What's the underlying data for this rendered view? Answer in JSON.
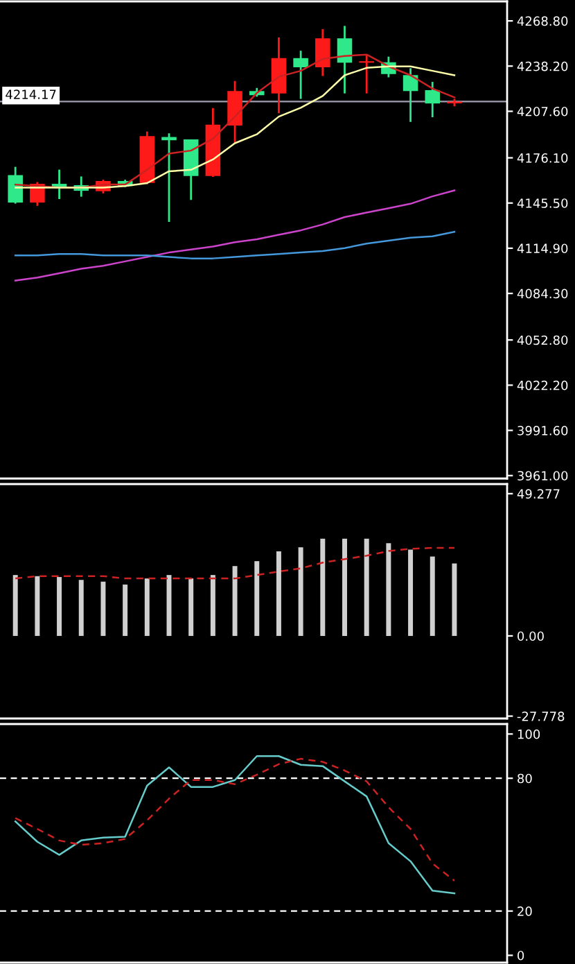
{
  "chart_data": [
    {
      "type": "candlestick",
      "categories": [
        null,
        null,
        null,
        null,
        null,
        null,
        null,
        null,
        null,
        null,
        null,
        null,
        null,
        null,
        null,
        null,
        null,
        null,
        null,
        null,
        null
      ],
      "ohlc": [
        [
          4164.4,
          4170.0,
          4145.1,
          4145.8
        ],
        [
          4145.8,
          4159.7,
          4143.6,
          4158.5
        ],
        [
          4158.5,
          4168.1,
          4148.2,
          4156.0
        ],
        [
          4157.6,
          4163.5,
          4149.8,
          4153.8
        ],
        [
          4153.5,
          4161.3,
          4152.0,
          4160.4
        ],
        [
          4160.4,
          4161.3,
          4156.3,
          4157.0
        ],
        [
          4159.1,
          4193.9,
          4158.2,
          4190.8
        ],
        [
          4190.2,
          4192.7,
          4132.7,
          4188.0
        ],
        [
          4188.6,
          4188.6,
          4147.6,
          4163.8
        ],
        [
          4163.8,
          4209.8,
          4163.2,
          4198.6
        ],
        [
          4198.0,
          4228.1,
          4186.2,
          4221.3
        ],
        [
          4221.3,
          4223.4,
          4217.5,
          4218.5
        ],
        [
          4219.7,
          4257.6,
          4206.3,
          4243.6
        ],
        [
          4243.6,
          4248.6,
          4216.0,
          4237.4
        ],
        [
          4237.4,
          4263.2,
          4231.5,
          4257.0
        ],
        [
          4257.0,
          4265.4,
          4219.7,
          4240.5
        ],
        [
          4240.5,
          4246.1,
          4219.7,
          4241.5
        ],
        [
          4240.8,
          4244.6,
          4230.6,
          4232.8
        ],
        [
          4232.1,
          4236.8,
          4200.4,
          4221.3
        ],
        [
          4221.9,
          4227.5,
          4203.6,
          4212.9
        ],
        [
          4213.0,
          4216.0,
          4211.0,
          4214.17
        ]
      ],
      "colors": [
        "#2ee88a",
        "#ff1a1a",
        "#2ee88a",
        "#2ee88a",
        "#ff1a1a",
        "#2ee88a",
        "#ff1a1a",
        "#2ee88a",
        "#2ee88a",
        "#ff1a1a",
        "#ff1a1a",
        "#2ee88a",
        "#ff1a1a",
        "#2ee88a",
        "#ff1a1a",
        "#2ee88a",
        "#ff1a1a",
        "#2ee88a",
        "#2ee88a",
        "#2ee88a",
        "#ff1a1a"
      ],
      "series": [
        {
          "type": "line",
          "color": "#cc2222",
          "values": [
            4158,
            4157,
            4156,
            4156,
            4158,
            4158,
            4168,
            4179,
            4181,
            4189,
            4204,
            4220,
            4231,
            4235,
            4243,
            4245,
            4246,
            4238,
            4232,
            4223,
            4217
          ]
        },
        {
          "type": "line",
          "color": "#ffffaa",
          "values": [
            4156,
            4156,
            4156,
            4156,
            4156,
            4157,
            4159,
            4167,
            4168,
            4175,
            4186,
            4192,
            4204,
            4210,
            4218,
            4232,
            4237,
            4238,
            4238,
            4235,
            4232
          ]
        },
        {
          "type": "line",
          "color": "#cc44cc",
          "values": [
            4093,
            4095,
            4098,
            4101,
            4103,
            4106,
            4109,
            4112,
            4114,
            4116,
            4119,
            4121,
            4124,
            4127,
            4131,
            4136,
            4139,
            4142,
            4145,
            4150,
            4154
          ]
        },
        {
          "type": "line",
          "color": "#4499dd",
          "values": [
            4110,
            4110,
            4111,
            4111,
            4110,
            4110,
            4110,
            4109,
            4108,
            4108,
            4109,
            4110,
            4111,
            4112,
            4113,
            4115,
            4118,
            4120,
            4122,
            4123,
            4126
          ]
        }
      ],
      "ylim": [
        3959,
        4282
      ],
      "yticks": [
        {
          "value": 4268.8,
          "label": "4268.80"
        },
        {
          "value": 4238.2,
          "label": "4238.20"
        },
        {
          "value": 4207.6,
          "label": "4207.60"
        },
        {
          "value": 4176.1,
          "label": "4176.10"
        },
        {
          "value": 4145.5,
          "label": "4145.50"
        },
        {
          "value": 4114.9,
          "label": "4114.90"
        },
        {
          "value": 4084.3,
          "label": "4084.30"
        },
        {
          "value": 4052.8,
          "label": "4052.80"
        },
        {
          "value": 4022.2,
          "label": "4022.20"
        },
        {
          "value": 3991.6,
          "label": "3991.60"
        },
        {
          "value": 3961.0,
          "label": "3961.00"
        }
      ],
      "ref_lines": [
        {
          "axis": "y",
          "value": 4214.17,
          "label": "4214.17",
          "color": "#a0a0b0",
          "line_style": "solid"
        }
      ],
      "tick_labels": "y",
      "grid": false
    },
    {
      "type": "bar",
      "categories": [
        null,
        null,
        null,
        null,
        null,
        null,
        null,
        null,
        null,
        null,
        null,
        null,
        null,
        null,
        null,
        null,
        null,
        null,
        null,
        null,
        null
      ],
      "series": [
        {
          "type": "bar",
          "color": "#d0d0d0",
          "values": [
            21.1,
            20.7,
            20.4,
            19.4,
            18.8,
            17.8,
            19.9,
            21.1,
            19.9,
            21.1,
            24.2,
            25.9,
            29.3,
            30.7,
            33.7,
            33.7,
            33.7,
            32.1,
            29.9,
            27.5,
            25.1
          ]
        },
        {
          "type": "line",
          "color": "#cc2222",
          "line_style": "dashed",
          "values": [
            19.9,
            20.7,
            20.7,
            20.7,
            20.7,
            19.9,
            19.9,
            19.9,
            19.9,
            19.9,
            19.9,
            21.1,
            22.3,
            23.4,
            25.4,
            26.6,
            27.8,
            29.4,
            30.2,
            30.5,
            30.5
          ]
        }
      ],
      "ylim": [
        -28.6,
        52.6
      ],
      "yticks": [
        49.277,
        {
          "value": 0,
          "label": "0.00"
        },
        -27.778
      ],
      "tick_labels": "y",
      "grid": false
    },
    {
      "type": "line",
      "categories": [
        null,
        null,
        null,
        null,
        null,
        null,
        null,
        null,
        null,
        null,
        null,
        null,
        null,
        null,
        null,
        null,
        null,
        null,
        null,
        null,
        null
      ],
      "series": [
        {
          "color": "#66cccc",
          "line_style": "solid",
          "values": [
            60.5,
            51.3,
            45.4,
            51.9,
            53.2,
            53.6,
            76.7,
            84.9,
            76.1,
            76.1,
            79.2,
            90.0,
            90.0,
            86.1,
            85.5,
            78.6,
            71.8,
            50.7,
            42.5,
            29.2,
            28.0
          ]
        },
        {
          "color": "#cc2222",
          "line_style": "dashed",
          "values": [
            62.0,
            57.1,
            51.9,
            49.9,
            50.7,
            52.6,
            61.0,
            70.8,
            79.2,
            79.2,
            77.3,
            81.6,
            86.4,
            88.8,
            87.4,
            83.5,
            78.6,
            66.9,
            57.1,
            41.5,
            33.7
          ]
        }
      ],
      "ylim": [
        -3.3,
        104.5
      ],
      "yticks": [
        100,
        80,
        20,
        0
      ],
      "ref_lines": [
        {
          "axis": "y",
          "value": 80,
          "color": "#ffffff",
          "line_style": "dashed"
        },
        {
          "axis": "y",
          "value": 20,
          "color": "#ffffff",
          "line_style": "dashed"
        }
      ],
      "tick_labels": "y",
      "grid": false
    }
  ]
}
